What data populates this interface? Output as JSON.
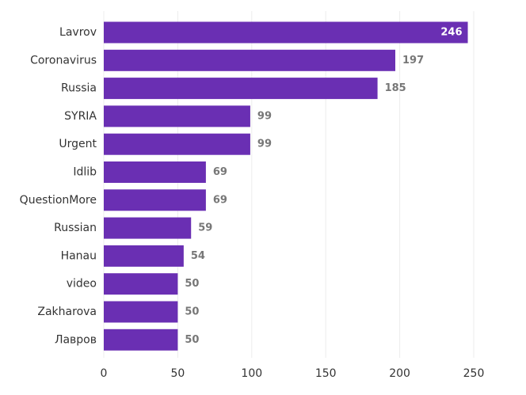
{
  "chart_data": {
    "type": "bar",
    "orientation": "horizontal",
    "categories": [
      "Lavrov",
      "Coronavirus",
      "Russia",
      "SYRIA",
      "Urgent",
      "Idlib",
      "QuestionMore",
      "Russian",
      "Hanau",
      "video",
      "Zakharova",
      "Лавров"
    ],
    "values": [
      246,
      197,
      185,
      99,
      99,
      69,
      69,
      59,
      54,
      50,
      50,
      50
    ],
    "title": "",
    "xlabel": "",
    "ylabel": "",
    "xlim": [
      0,
      250
    ],
    "xticks": [
      0,
      50,
      100,
      150,
      200,
      250
    ],
    "grid": true,
    "legend": "none",
    "data_labels": true
  },
  "colors": {
    "bar": "#6a2fb3",
    "grid": "#ececec",
    "text": "#333333",
    "value_label": "#777777",
    "value_label_inside": "#ffffff"
  }
}
